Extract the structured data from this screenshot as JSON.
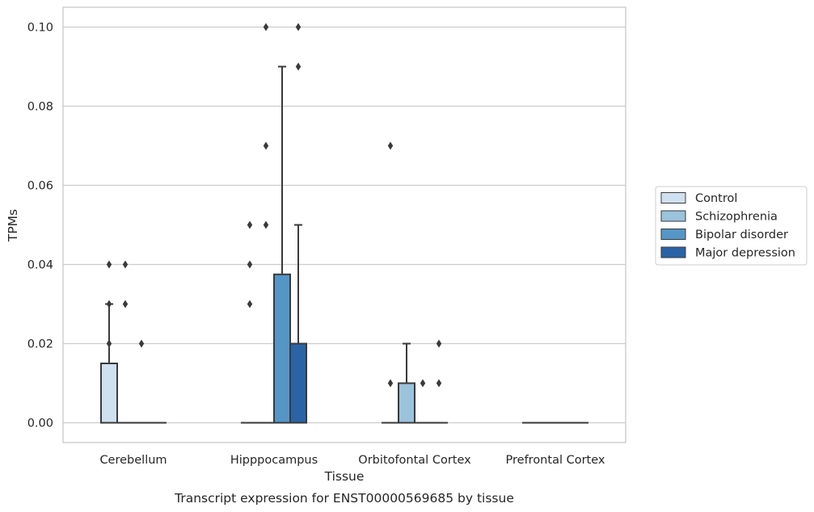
{
  "chart_data": {
    "type": "box",
    "title": "Transcript expression for ENST00000569685 by tissue",
    "xlabel": "Tissue",
    "ylabel": "TPMs",
    "ylim": [
      -0.005,
      0.105
    ],
    "yticks": [
      "0.00",
      "0.02",
      "0.04",
      "0.06",
      "0.08",
      "0.10"
    ],
    "ytick_values": [
      0.0,
      0.02,
      0.04,
      0.06,
      0.08,
      0.1
    ],
    "grid": true,
    "legend_placement": "right",
    "categories": [
      "Cerebellum",
      "Hipppocampus",
      "Orbitofontal Cortex",
      "Prefrontal Cortex"
    ],
    "series": [
      {
        "name": "Control",
        "color": "#cfe0f0",
        "boxes": [
          {
            "q1": 0.0,
            "median": 0.0,
            "q3": 0.015,
            "whisker_low": 0.0,
            "whisker_high": 0.03,
            "fliers": [
              0.04,
              0.03,
              0.02
            ]
          },
          {
            "q1": 0.0,
            "median": 0.0,
            "q3": 0.0,
            "whisker_low": 0.0,
            "whisker_high": 0.0,
            "fliers": [
              0.03,
              0.04,
              0.05
            ]
          },
          {
            "q1": 0.0,
            "median": 0.0,
            "q3": 0.0,
            "whisker_low": 0.0,
            "whisker_high": 0.0,
            "fliers": [
              0.07,
              0.01
            ]
          },
          {
            "q1": 0.0,
            "median": 0.0,
            "q3": 0.0,
            "whisker_low": 0.0,
            "whisker_high": 0.0,
            "fliers": []
          }
        ]
      },
      {
        "name": "Schizophrenia",
        "color": "#9ac3dc",
        "boxes": [
          {
            "q1": 0.0,
            "median": 0.0,
            "q3": 0.0,
            "whisker_low": 0.0,
            "whisker_high": 0.0,
            "fliers": [
              0.04,
              0.03
            ]
          },
          {
            "q1": 0.0,
            "median": 0.0,
            "q3": 0.0,
            "whisker_low": 0.0,
            "whisker_high": 0.0,
            "fliers": [
              0.1,
              0.07,
              0.05
            ]
          },
          {
            "q1": 0.0,
            "median": 0.0,
            "q3": 0.01,
            "whisker_low": 0.0,
            "whisker_high": 0.02,
            "fliers": []
          },
          {
            "q1": 0.0,
            "median": 0.0,
            "q3": 0.0,
            "whisker_low": 0.0,
            "whisker_high": 0.0,
            "fliers": []
          }
        ]
      },
      {
        "name": "Bipolar disorder",
        "color": "#5596c7",
        "boxes": [
          {
            "q1": 0.0,
            "median": 0.0,
            "q3": 0.0,
            "whisker_low": 0.0,
            "whisker_high": 0.0,
            "fliers": [
              0.02
            ]
          },
          {
            "q1": 0.0,
            "median": 0.0,
            "q3": 0.0375,
            "whisker_low": 0.0,
            "whisker_high": 0.09,
            "fliers": []
          },
          {
            "q1": 0.0,
            "median": 0.0,
            "q3": 0.0,
            "whisker_low": 0.0,
            "whisker_high": 0.0,
            "fliers": [
              0.01
            ]
          },
          {
            "q1": 0.0,
            "median": 0.0,
            "q3": 0.0,
            "whisker_low": 0.0,
            "whisker_high": 0.0,
            "fliers": []
          }
        ]
      },
      {
        "name": "Major depression",
        "color": "#2a64a6",
        "boxes": [
          {
            "q1": 0.0,
            "median": 0.0,
            "q3": 0.0,
            "whisker_low": 0.0,
            "whisker_high": 0.0,
            "fliers": []
          },
          {
            "q1": 0.0,
            "median": 0.0,
            "q3": 0.02,
            "whisker_low": 0.0,
            "whisker_high": 0.05,
            "fliers": [
              0.1,
              0.09
            ]
          },
          {
            "q1": 0.0,
            "median": 0.0,
            "q3": 0.0,
            "whisker_low": 0.0,
            "whisker_high": 0.0,
            "fliers": [
              0.02,
              0.01
            ]
          },
          {
            "q1": 0.0,
            "median": 0.0,
            "q3": 0.0,
            "whisker_low": 0.0,
            "whisker_high": 0.0,
            "fliers": []
          }
        ]
      }
    ]
  }
}
